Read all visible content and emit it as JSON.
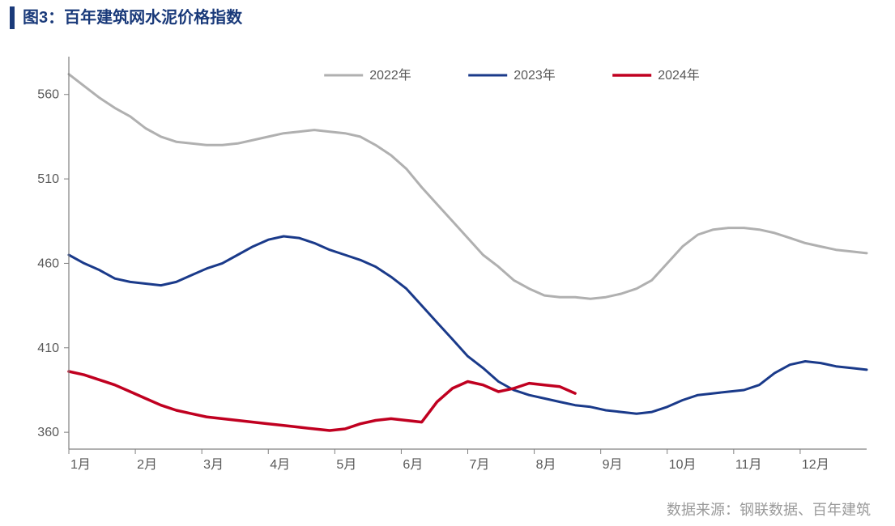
{
  "title": "图3：百年建筑网水泥价格指数",
  "source": "数据来源：钢联数据、百年建筑",
  "chart": {
    "type": "line",
    "background_color": "#ffffff",
    "axis_color": "#808080",
    "tick_text_color": "#595959",
    "title_color": "#1a3a7a",
    "title_fontsize": 20,
    "label_fontsize": 16,
    "x_labels": [
      "1月",
      "2月",
      "3月",
      "4月",
      "5月",
      "6月",
      "7月",
      "8月",
      "9月",
      "10月",
      "11月",
      "12月"
    ],
    "x_domain": [
      0,
      52
    ],
    "y_ticks": [
      360,
      410,
      460,
      510,
      560
    ],
    "ylim": [
      350,
      580
    ],
    "legend": {
      "items": [
        {
          "label": "2022年",
          "color": "#b0b0b0",
          "width": 3
        },
        {
          "label": "2023年",
          "color": "#1a3a8a",
          "width": 3
        },
        {
          "label": "2024年",
          "color": "#c00020",
          "width": 3.5
        }
      ],
      "position": "top-center"
    },
    "series": [
      {
        "name": "2022年",
        "color": "#b0b0b0",
        "width": 3,
        "y": [
          572,
          565,
          558,
          552,
          547,
          540,
          535,
          532,
          531,
          530,
          530,
          531,
          533,
          535,
          537,
          538,
          539,
          538,
          537,
          535,
          530,
          524,
          516,
          505,
          495,
          485,
          475,
          465,
          458,
          450,
          445,
          441,
          440,
          440,
          439,
          440,
          442,
          445,
          450,
          460,
          470,
          477,
          480,
          481,
          481,
          480,
          478,
          475,
          472,
          470,
          468,
          467,
          466
        ]
      },
      {
        "name": "2023年",
        "color": "#1a3a8a",
        "width": 3,
        "y": [
          465,
          460,
          456,
          451,
          449,
          448,
          447,
          449,
          453,
          457,
          460,
          465,
          470,
          474,
          476,
          475,
          472,
          468,
          465,
          462,
          458,
          452,
          445,
          435,
          425,
          415,
          405,
          398,
          390,
          385,
          382,
          380,
          378,
          376,
          375,
          373,
          372,
          371,
          372,
          375,
          379,
          382,
          383,
          384,
          385,
          388,
          395,
          400,
          402,
          401,
          399,
          398,
          397
        ]
      },
      {
        "name": "2024年",
        "color": "#c00020",
        "width": 3.5,
        "y": [
          396,
          394,
          391,
          388,
          384,
          380,
          376,
          373,
          371,
          369,
          368,
          367,
          366,
          365,
          364,
          363,
          362,
          361,
          362,
          365,
          367,
          368,
          367,
          366,
          378,
          386,
          390,
          388,
          384,
          386,
          389,
          388,
          387,
          383
        ]
      }
    ]
  }
}
